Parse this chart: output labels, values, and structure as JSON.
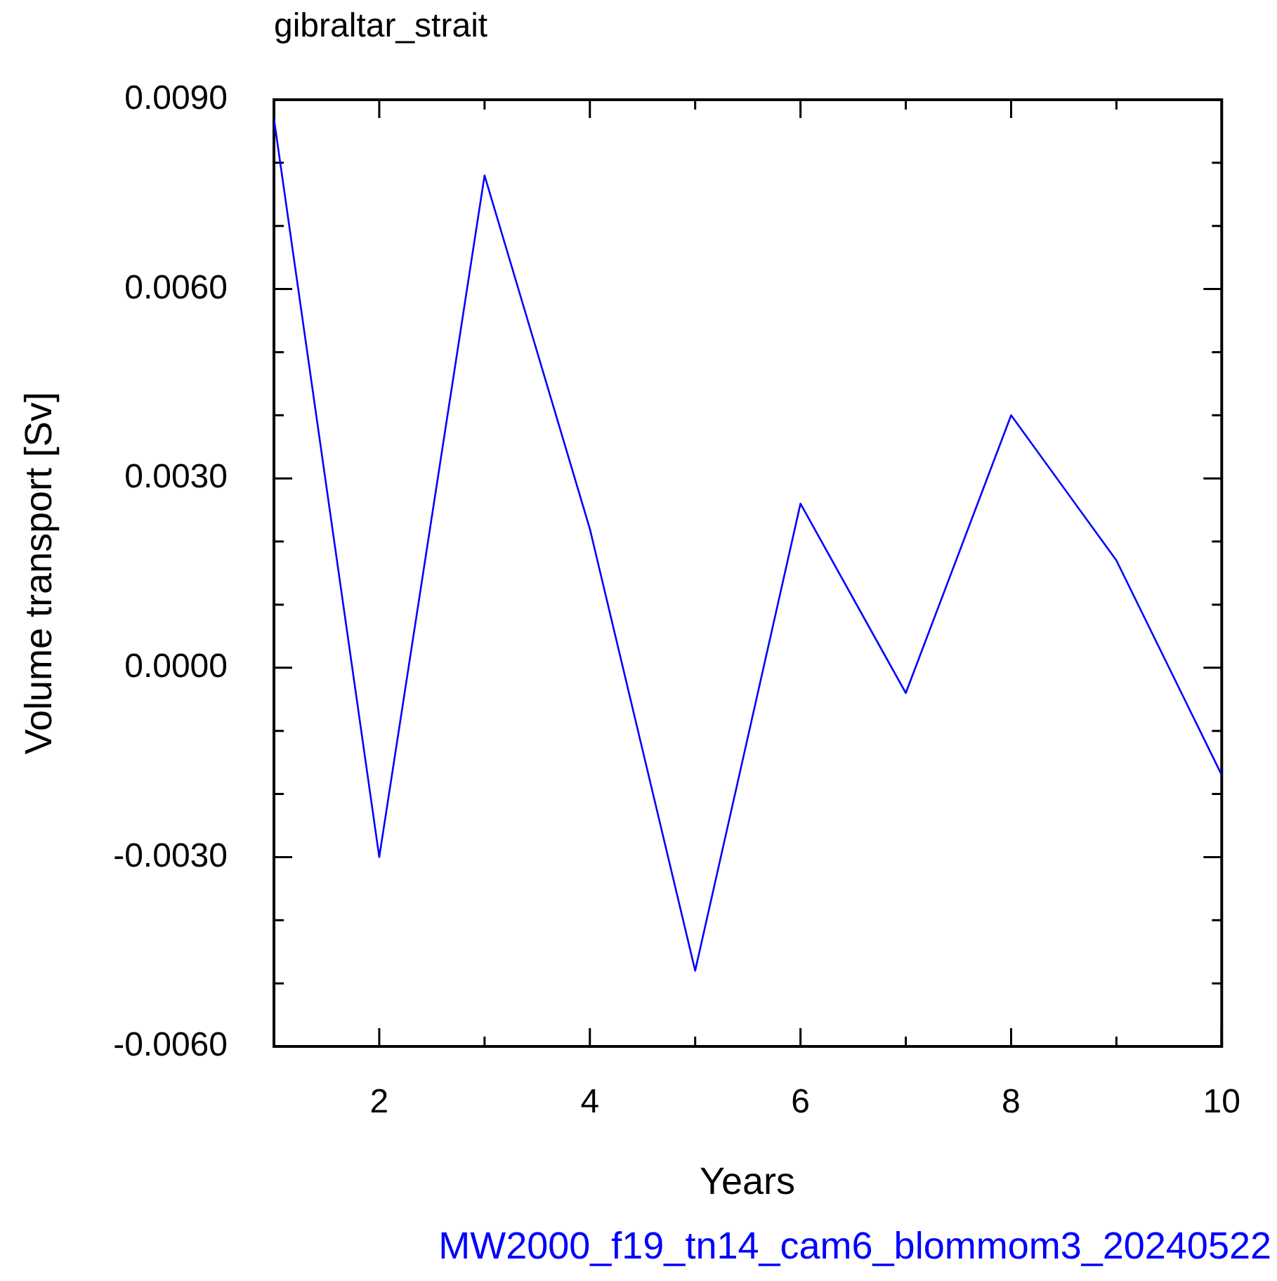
{
  "chart_data": {
    "type": "line",
    "title": "gibraltar_strait",
    "xlabel": "Years",
    "ylabel": "Volume transport [Sv]",
    "annotations": [
      "MW2000_f19_tn14_cam6_blommom3_20240522"
    ],
    "x": [
      1,
      2,
      3,
      4,
      5,
      6,
      7,
      8,
      9,
      10
    ],
    "series": [
      {
        "color": "#0000ff",
        "values": [
          0.0087,
          -0.003,
          0.0078,
          0.0022,
          -0.0048,
          0.0026,
          -0.0004,
          0.004,
          0.0017,
          -0.0017
        ]
      }
    ],
    "xlim": [
      1,
      10
    ],
    "xticks": [
      {
        "value": 1,
        "label": null
      },
      2,
      {
        "value": 3,
        "label": null
      },
      4,
      {
        "value": 5,
        "label": null
      },
      6,
      {
        "value": 7,
        "label": null
      },
      8,
      {
        "value": 9,
        "label": null
      },
      10
    ],
    "ylim": [
      -0.006,
      0.009
    ],
    "yticks": [
      {
        "value": -0.006,
        "label": "-0.0060"
      },
      {
        "value": -0.005,
        "label": null
      },
      {
        "value": -0.004,
        "label": null
      },
      {
        "value": -0.003,
        "label": "-0.0030"
      },
      {
        "value": -0.002,
        "label": null
      },
      {
        "value": -0.001,
        "label": null
      },
      {
        "value": 0,
        "label": "0.0000"
      },
      {
        "value": 0.001,
        "label": null
      },
      {
        "value": 0.002,
        "label": null
      },
      {
        "value": 0.003,
        "label": "0.0030"
      },
      {
        "value": 0.004,
        "label": null
      },
      {
        "value": 0.005,
        "label": null
      },
      {
        "value": 0.006,
        "label": "0.0060"
      },
      {
        "value": 0.007,
        "label": null
      },
      {
        "value": 0.008,
        "label": null
      },
      {
        "value": 0.009,
        "label": "0.0090"
      }
    ],
    "grid": false,
    "legend": false,
    "marker": "none",
    "line_style": "solid"
  }
}
